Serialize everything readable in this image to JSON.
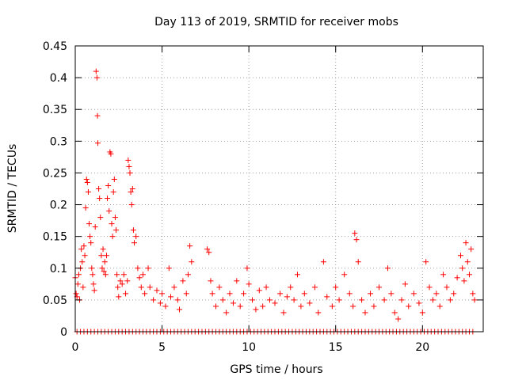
{
  "chart_data": {
    "type": "scatter",
    "title": "Day 113 of 2019, SRMTID for receiver mobs",
    "xlabel": "GPS time / hours",
    "ylabel": "SRMTID / TECUs",
    "xlim": [
      0,
      23.5
    ],
    "ylim": [
      0,
      0.45
    ],
    "x_ticks": [
      0,
      5,
      10,
      15,
      20
    ],
    "x_tick_labels": [
      "0",
      "5",
      "10",
      "15",
      "20"
    ],
    "y_ticks": [
      0,
      0.05,
      0.1,
      0.15,
      0.2,
      0.25,
      0.3,
      0.35,
      0.4,
      0.45
    ],
    "y_tick_labels": [
      "0",
      "0.05",
      "0.1",
      "0.15",
      "0.2",
      "0.25",
      "0.3",
      "0.35",
      "0.4",
      "0.45"
    ],
    "grid": true,
    "marker": "+",
    "color": "#ff0000",
    "series": [
      {
        "name": "SRMTID",
        "points": [
          [
            0.0,
            0.085
          ],
          [
            0.05,
            0.06
          ],
          [
            0.1,
            0.055
          ],
          [
            0.15,
            0.075
          ],
          [
            0.2,
            0.09
          ],
          [
            0.25,
            0.05
          ],
          [
            0.3,
            0.1
          ],
          [
            0.35,
            0.13
          ],
          [
            0.4,
            0.11
          ],
          [
            0.45,
            0.07
          ],
          [
            0.5,
            0.135
          ],
          [
            0.55,
            0.12
          ],
          [
            0.6,
            0.195
          ],
          [
            0.65,
            0.24
          ],
          [
            0.7,
            0.235
          ],
          [
            0.75,
            0.22
          ],
          [
            0.8,
            0.17
          ],
          [
            0.85,
            0.15
          ],
          [
            0.9,
            0.14
          ],
          [
            0.95,
            0.1
          ],
          [
            1.0,
            0.09
          ],
          [
            1.05,
            0.075
          ],
          [
            1.1,
            0.065
          ],
          [
            1.15,
            0.165
          ],
          [
            1.2,
            0.41
          ],
          [
            1.25,
            0.4
          ],
          [
            1.28,
            0.34
          ],
          [
            1.3,
            0.297
          ],
          [
            1.35,
            0.225
          ],
          [
            1.4,
            0.21
          ],
          [
            1.45,
            0.18
          ],
          [
            1.5,
            0.12
          ],
          [
            1.55,
            0.1
          ],
          [
            1.6,
            0.13
          ],
          [
            1.65,
            0.095
          ],
          [
            1.7,
            0.11
          ],
          [
            1.75,
            0.09
          ],
          [
            1.8,
            0.12
          ],
          [
            1.85,
            0.21
          ],
          [
            1.9,
            0.23
          ],
          [
            1.95,
            0.19
          ],
          [
            2.0,
            0.283
          ],
          [
            2.05,
            0.28
          ],
          [
            2.1,
            0.17
          ],
          [
            2.15,
            0.15
          ],
          [
            2.2,
            0.22
          ],
          [
            2.25,
            0.24
          ],
          [
            2.3,
            0.18
          ],
          [
            2.35,
            0.16
          ],
          [
            2.4,
            0.09
          ],
          [
            2.45,
            0.07
          ],
          [
            2.5,
            0.055
          ],
          [
            2.6,
            0.08
          ],
          [
            2.7,
            0.075
          ],
          [
            2.8,
            0.09
          ],
          [
            2.9,
            0.06
          ],
          [
            3.0,
            0.08
          ],
          [
            3.05,
            0.27
          ],
          [
            3.1,
            0.26
          ],
          [
            3.15,
            0.25
          ],
          [
            3.2,
            0.22
          ],
          [
            3.25,
            0.2
          ],
          [
            3.3,
            0.225
          ],
          [
            3.35,
            0.16
          ],
          [
            3.4,
            0.14
          ],
          [
            3.5,
            0.15
          ],
          [
            3.6,
            0.1
          ],
          [
            3.7,
            0.085
          ],
          [
            3.8,
            0.07
          ],
          [
            3.9,
            0.09
          ],
          [
            4.0,
            0.06
          ],
          [
            4.2,
            0.1
          ],
          [
            4.3,
            0.07
          ],
          [
            4.5,
            0.05
          ],
          [
            4.7,
            0.065
          ],
          [
            4.9,
            0.045
          ],
          [
            5.0,
            0.06
          ],
          [
            5.2,
            0.04
          ],
          [
            5.4,
            0.1
          ],
          [
            5.5,
            0.055
          ],
          [
            5.7,
            0.07
          ],
          [
            5.9,
            0.05
          ],
          [
            6.0,
            0.035
          ],
          [
            6.2,
            0.08
          ],
          [
            6.4,
            0.06
          ],
          [
            6.5,
            0.09
          ],
          [
            6.6,
            0.135
          ],
          [
            6.7,
            0.11
          ],
          [
            7.6,
            0.13
          ],
          [
            7.7,
            0.125
          ],
          [
            7.8,
            0.08
          ],
          [
            7.9,
            0.06
          ],
          [
            8.1,
            0.04
          ],
          [
            8.3,
            0.07
          ],
          [
            8.5,
            0.05
          ],
          [
            8.7,
            0.03
          ],
          [
            8.9,
            0.06
          ],
          [
            9.1,
            0.045
          ],
          [
            9.3,
            0.08
          ],
          [
            9.5,
            0.04
          ],
          [
            9.7,
            0.06
          ],
          [
            9.9,
            0.1
          ],
          [
            10.0,
            0.075
          ],
          [
            10.2,
            0.05
          ],
          [
            10.4,
            0.035
          ],
          [
            10.6,
            0.065
          ],
          [
            10.8,
            0.04
          ],
          [
            11.0,
            0.07
          ],
          [
            11.2,
            0.05
          ],
          [
            11.5,
            0.045
          ],
          [
            11.8,
            0.06
          ],
          [
            12.0,
            0.03
          ],
          [
            12.2,
            0.055
          ],
          [
            12.4,
            0.07
          ],
          [
            12.6,
            0.05
          ],
          [
            12.8,
            0.09
          ],
          [
            13.0,
            0.04
          ],
          [
            13.2,
            0.06
          ],
          [
            13.5,
            0.045
          ],
          [
            13.8,
            0.07
          ],
          [
            14.0,
            0.03
          ],
          [
            14.3,
            0.11
          ],
          [
            14.5,
            0.055
          ],
          [
            14.8,
            0.04
          ],
          [
            15.0,
            0.07
          ],
          [
            15.2,
            0.05
          ],
          [
            15.5,
            0.09
          ],
          [
            15.8,
            0.06
          ],
          [
            16.0,
            0.04
          ],
          [
            16.1,
            0.155
          ],
          [
            16.2,
            0.145
          ],
          [
            16.3,
            0.11
          ],
          [
            16.5,
            0.05
          ],
          [
            16.7,
            0.03
          ],
          [
            17.0,
            0.06
          ],
          [
            17.2,
            0.04
          ],
          [
            17.5,
            0.07
          ],
          [
            17.8,
            0.05
          ],
          [
            18.0,
            0.1
          ],
          [
            18.2,
            0.06
          ],
          [
            18.4,
            0.03
          ],
          [
            18.6,
            0.02
          ],
          [
            18.8,
            0.05
          ],
          [
            19.0,
            0.075
          ],
          [
            19.2,
            0.04
          ],
          [
            19.5,
            0.06
          ],
          [
            19.8,
            0.045
          ],
          [
            20.0,
            0.03
          ],
          [
            20.2,
            0.11
          ],
          [
            20.4,
            0.07
          ],
          [
            20.6,
            0.05
          ],
          [
            20.8,
            0.06
          ],
          [
            21.0,
            0.04
          ],
          [
            21.2,
            0.09
          ],
          [
            21.4,
            0.07
          ],
          [
            21.6,
            0.05
          ],
          [
            21.8,
            0.06
          ],
          [
            22.0,
            0.085
          ],
          [
            22.2,
            0.12
          ],
          [
            22.3,
            0.1
          ],
          [
            22.4,
            0.08
          ],
          [
            22.5,
            0.14
          ],
          [
            22.6,
            0.11
          ],
          [
            22.7,
            0.09
          ],
          [
            22.8,
            0.13
          ],
          [
            22.9,
            0.06
          ],
          [
            23.0,
            0.05
          ]
        ],
        "zeros_x": [
          0.1,
          0.3,
          0.5,
          0.7,
          0.9,
          1.1,
          1.3,
          1.5,
          1.7,
          1.9,
          2.1,
          2.3,
          2.5,
          2.7,
          2.9,
          3.1,
          3.3,
          3.5,
          3.7,
          3.9,
          4.1,
          4.3,
          4.5,
          4.7,
          4.9,
          5.1,
          5.3,
          5.5,
          5.7,
          5.9,
          6.1,
          6.3,
          6.5,
          6.7,
          6.9,
          7.1,
          7.3,
          7.5,
          7.7,
          7.9,
          8.1,
          8.3,
          8.5,
          8.7,
          8.9,
          9.1,
          9.3,
          9.5,
          9.7,
          9.9,
          10.1,
          10.3,
          10.5,
          10.7,
          10.9,
          11.1,
          11.3,
          11.5,
          11.7,
          11.9,
          12.1,
          12.3,
          12.5,
          12.7,
          12.9,
          13.1,
          13.3,
          13.5,
          13.7,
          13.9,
          14.1,
          14.3,
          14.5,
          14.7,
          14.9,
          15.1,
          15.3,
          15.5,
          15.7,
          15.9,
          16.1,
          16.3,
          16.5,
          16.7,
          16.9,
          17.1,
          17.3,
          17.5,
          17.7,
          17.9,
          18.1,
          18.3,
          18.5,
          18.7,
          18.9,
          19.1,
          19.3,
          19.5,
          19.7,
          19.9,
          20.1,
          20.3,
          20.5,
          20.7,
          20.9,
          21.1,
          21.3,
          21.5,
          21.7,
          21.9,
          22.1,
          22.3,
          22.5,
          22.7,
          22.9
        ]
      }
    ]
  }
}
